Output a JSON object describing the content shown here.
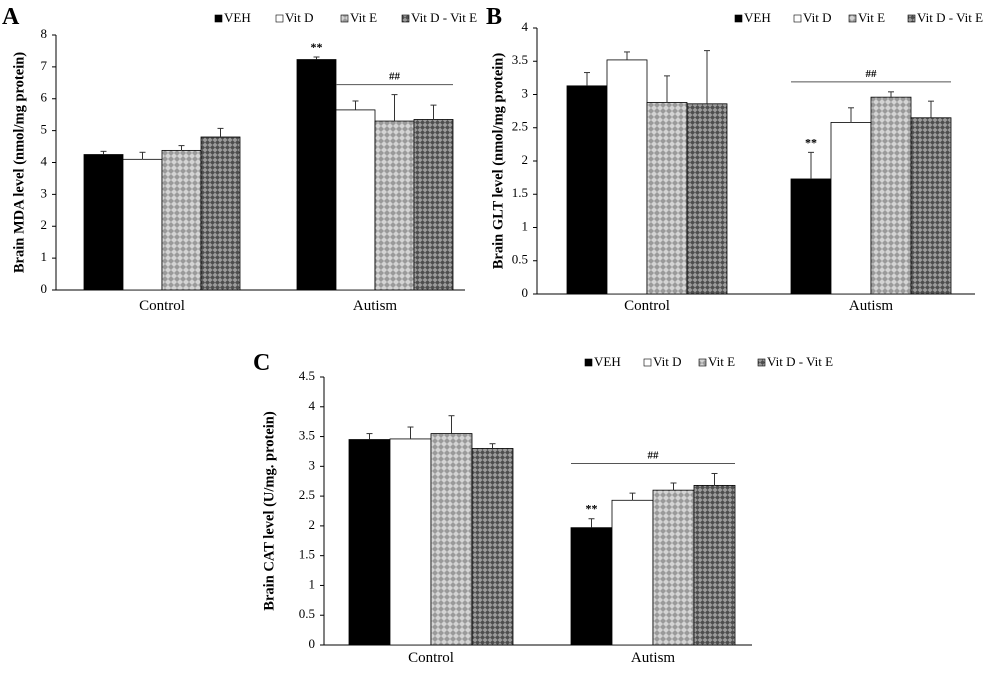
{
  "colors": {
    "veh": "#000000",
    "vitd": "#ffffff",
    "vite": "#bfbfbf",
    "vitde": "#7a7a7a",
    "axis": "#000000"
  },
  "chart_data": [
    {
      "type": "bar",
      "panel_label": "A",
      "ylabel": "Brain MDA level (nmol/mg protein)",
      "xlabel": "",
      "categories": [
        "Control",
        "Autism"
      ],
      "ylim": [
        0,
        8
      ],
      "yticks": [
        "0",
        "1",
        "2",
        "3",
        "4",
        "5",
        "6",
        "7",
        "8"
      ],
      "series": [
        {
          "name": "VEH",
          "values": [
            4.25,
            7.23
          ],
          "errors": [
            0.1,
            0.08
          ]
        },
        {
          "name": "Vit D",
          "values": [
            4.1,
            5.65
          ],
          "errors": [
            0.22,
            0.28
          ]
        },
        {
          "name": "Vit E",
          "values": [
            4.38,
            5.3
          ],
          "errors": [
            0.15,
            0.83
          ]
        },
        {
          "name": "Vit D - Vit E",
          "values": [
            4.8,
            5.35
          ],
          "errors": [
            0.27,
            0.45
          ]
        }
      ],
      "annotations": [
        {
          "text": "**",
          "category": 1,
          "series": 0
        },
        {
          "text": "##",
          "category": 1,
          "span_from_series": 1,
          "span_to_series": 3
        }
      ],
      "legend_position": "top-right",
      "grid": false
    },
    {
      "type": "bar",
      "panel_label": "B",
      "ylabel": "Brain GLT level (nmol/mg protein)",
      "xlabel": "",
      "categories": [
        "Control",
        "Autism"
      ],
      "ylim": [
        0,
        4
      ],
      "yticks": [
        "0",
        "0.5",
        "1",
        "1.5",
        "2",
        "2.5",
        "3",
        "3.5",
        "4"
      ],
      "series": [
        {
          "name": "VEH",
          "values": [
            3.13,
            1.73
          ],
          "errors": [
            0.2,
            0.4
          ]
        },
        {
          "name": "Vit D",
          "values": [
            3.52,
            2.58
          ],
          "errors": [
            0.12,
            0.22
          ]
        },
        {
          "name": "Vit E",
          "values": [
            2.88,
            2.96
          ],
          "errors": [
            0.4,
            0.08
          ]
        },
        {
          "name": "Vit D - Vit E",
          "values": [
            2.86,
            2.65
          ],
          "errors": [
            0.8,
            0.25
          ]
        }
      ],
      "annotations": [
        {
          "text": "**",
          "category": 1,
          "series": 0
        },
        {
          "text": "##",
          "category": 1,
          "span_from_series": 0,
          "span_to_series": 3
        }
      ],
      "legend_position": "top-right",
      "grid": false
    },
    {
      "type": "bar",
      "panel_label": "C",
      "ylabel": "Brain CAT level (U/mg. protein)",
      "xlabel": "",
      "categories": [
        "Control",
        "Autism"
      ],
      "ylim": [
        0,
        4.5
      ],
      "yticks": [
        "0",
        "0.5",
        "1",
        "1.5",
        "2",
        "2.5",
        "3",
        "3.5",
        "4",
        "4.5"
      ],
      "series": [
        {
          "name": "VEH",
          "values": [
            3.45,
            1.97
          ],
          "errors": [
            0.1,
            0.15
          ]
        },
        {
          "name": "Vit D",
          "values": [
            3.46,
            2.43
          ],
          "errors": [
            0.2,
            0.12
          ]
        },
        {
          "name": "Vit E",
          "values": [
            3.55,
            2.6
          ],
          "errors": [
            0.3,
            0.12
          ]
        },
        {
          "name": "Vit D - Vit E",
          "values": [
            3.3,
            2.68
          ],
          "errors": [
            0.08,
            0.2
          ]
        }
      ],
      "annotations": [
        {
          "text": "**",
          "category": 1,
          "series": 0
        },
        {
          "text": "##",
          "category": 1,
          "span_from_series": 0,
          "span_to_series": 3
        }
      ],
      "legend_position": "top-right",
      "grid": false
    }
  ]
}
